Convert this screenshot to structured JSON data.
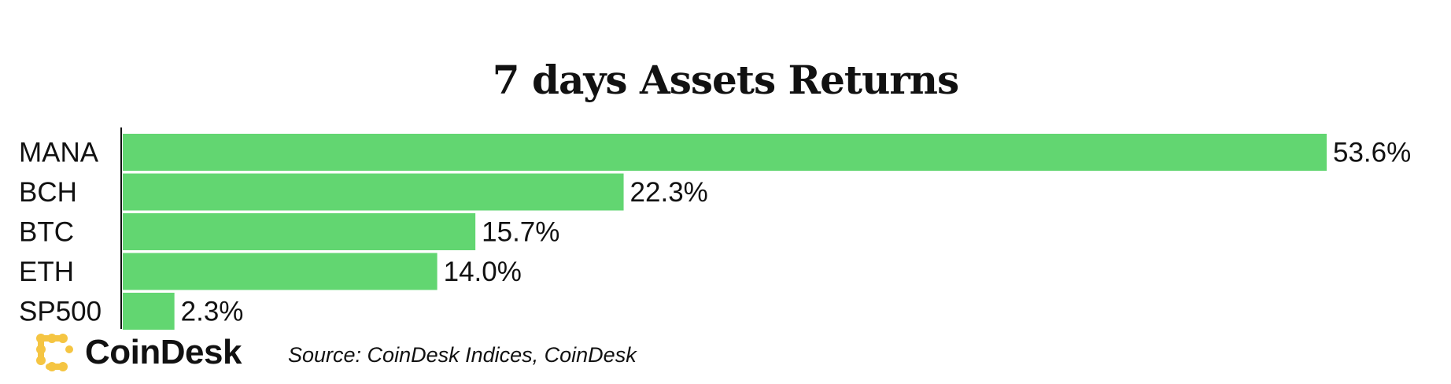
{
  "chart_data": {
    "type": "bar",
    "orientation": "horizontal",
    "title": "7 days Assets Returns",
    "categories": [
      "MANA",
      "BCH",
      "BTC",
      "ETH",
      "SP500"
    ],
    "values": [
      53.6,
      22.3,
      15.7,
      14.0,
      2.3
    ],
    "value_labels": [
      "53.6%",
      "22.3%",
      "15.7%",
      "14.0%",
      "2.3%"
    ],
    "unit": "%",
    "xlim": [
      0,
      53.6
    ],
    "bar_color": "#62d671",
    "grid": false,
    "legend": "none"
  },
  "footer": {
    "brand": "CoinDesk",
    "brand_color": "#f5c542",
    "source": "Source: CoinDesk Indices, CoinDesk"
  }
}
